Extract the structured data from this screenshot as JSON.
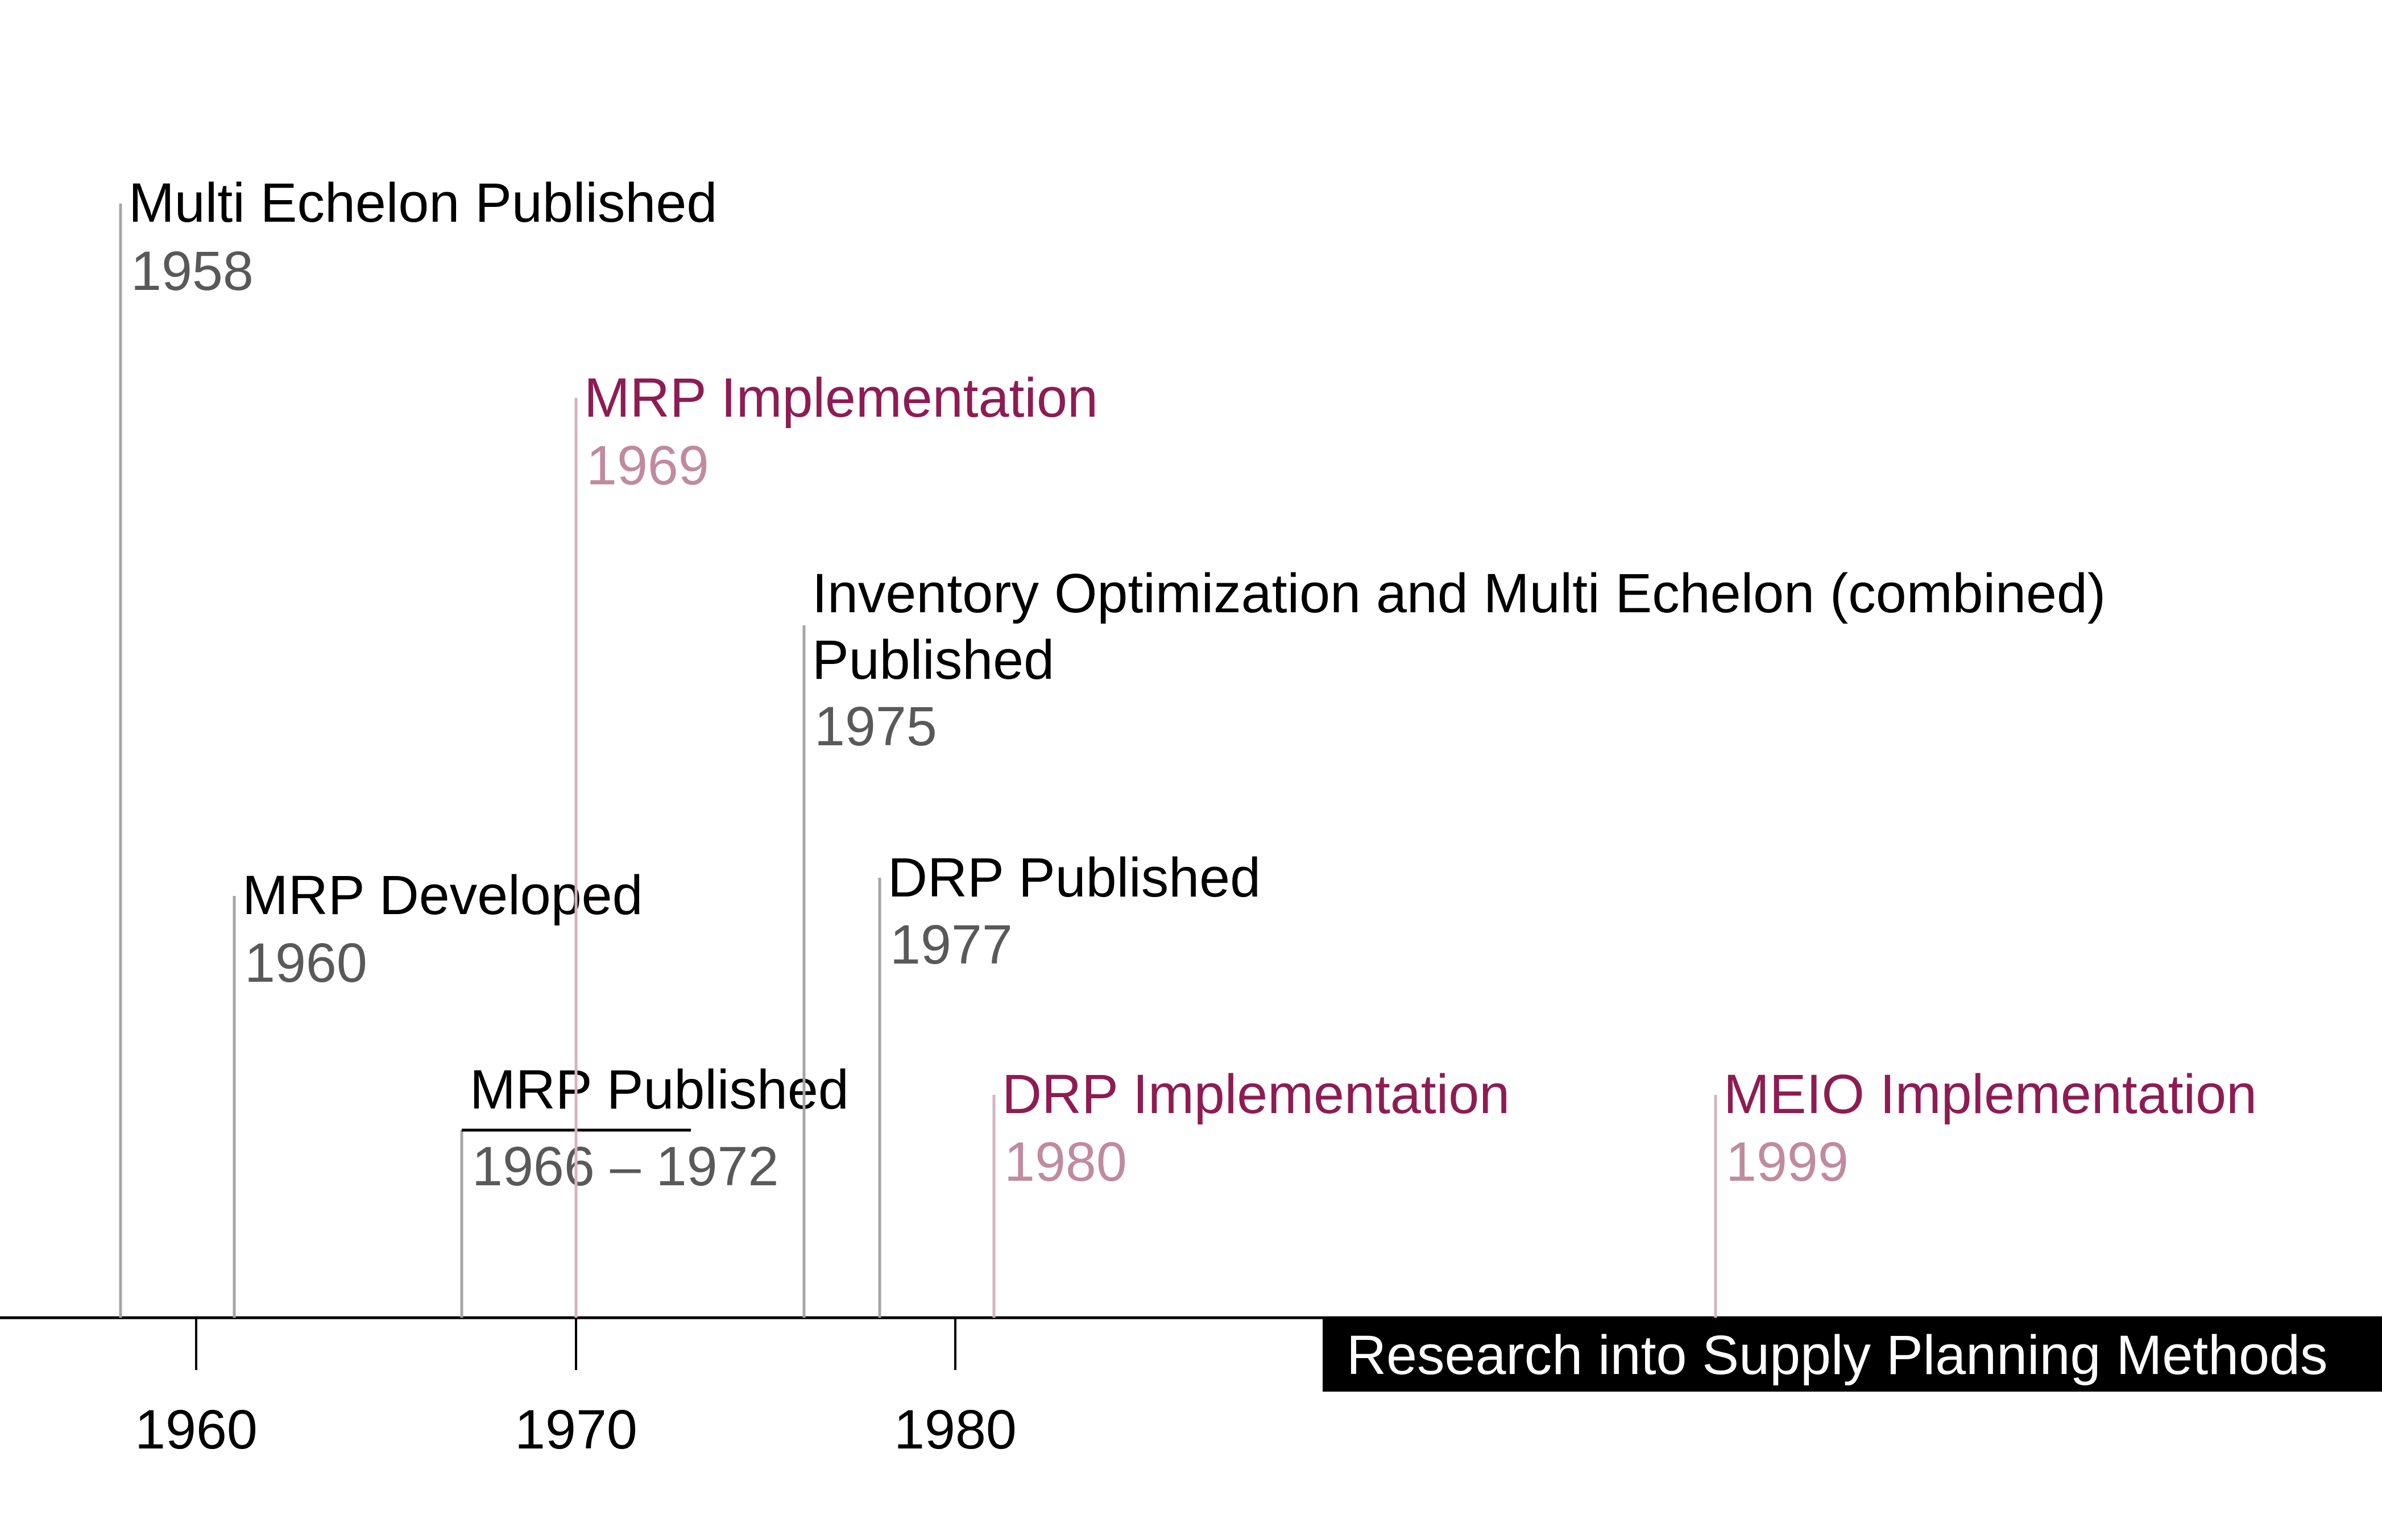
{
  "title": "Research into Supply Planning Methods",
  "colors": {
    "axis": "#000000",
    "research_text": "#000000",
    "research_year": "#595959",
    "research_line": "#a6a6a6",
    "implementation_text": "#8e1c52",
    "implementation_year": "#c08a9f",
    "implementation_line": "#d3b3bf",
    "title_bg": "#000000",
    "title_text": "#ffffff"
  },
  "axis_ticks": [
    {
      "value": 1960,
      "label": "1960"
    },
    {
      "value": 1970,
      "label": "1970"
    },
    {
      "value": 1980,
      "label": "1980"
    }
  ],
  "events": [
    {
      "name": "Multi Echelon Published",
      "year": "1958",
      "kind": "research"
    },
    {
      "name": "MRP Implementation",
      "year": "1969",
      "kind": "implementation"
    },
    {
      "name": "Inventory Optimization and Multi Echelon (combined)",
      "name2": "Published",
      "year": "1975",
      "kind": "research"
    },
    {
      "name": "DRP Published",
      "year": "1977",
      "kind": "research"
    },
    {
      "name": "MRP Developed",
      "year": "1960",
      "kind": "research"
    },
    {
      "name": "MRP Published",
      "year": "1966 – 1972",
      "kind": "research",
      "range": true
    },
    {
      "name": "DRP Implementation",
      "year": "1980",
      "kind": "implementation"
    },
    {
      "name": "MEIO Implementation",
      "year": "1999",
      "kind": "implementation"
    }
  ]
}
